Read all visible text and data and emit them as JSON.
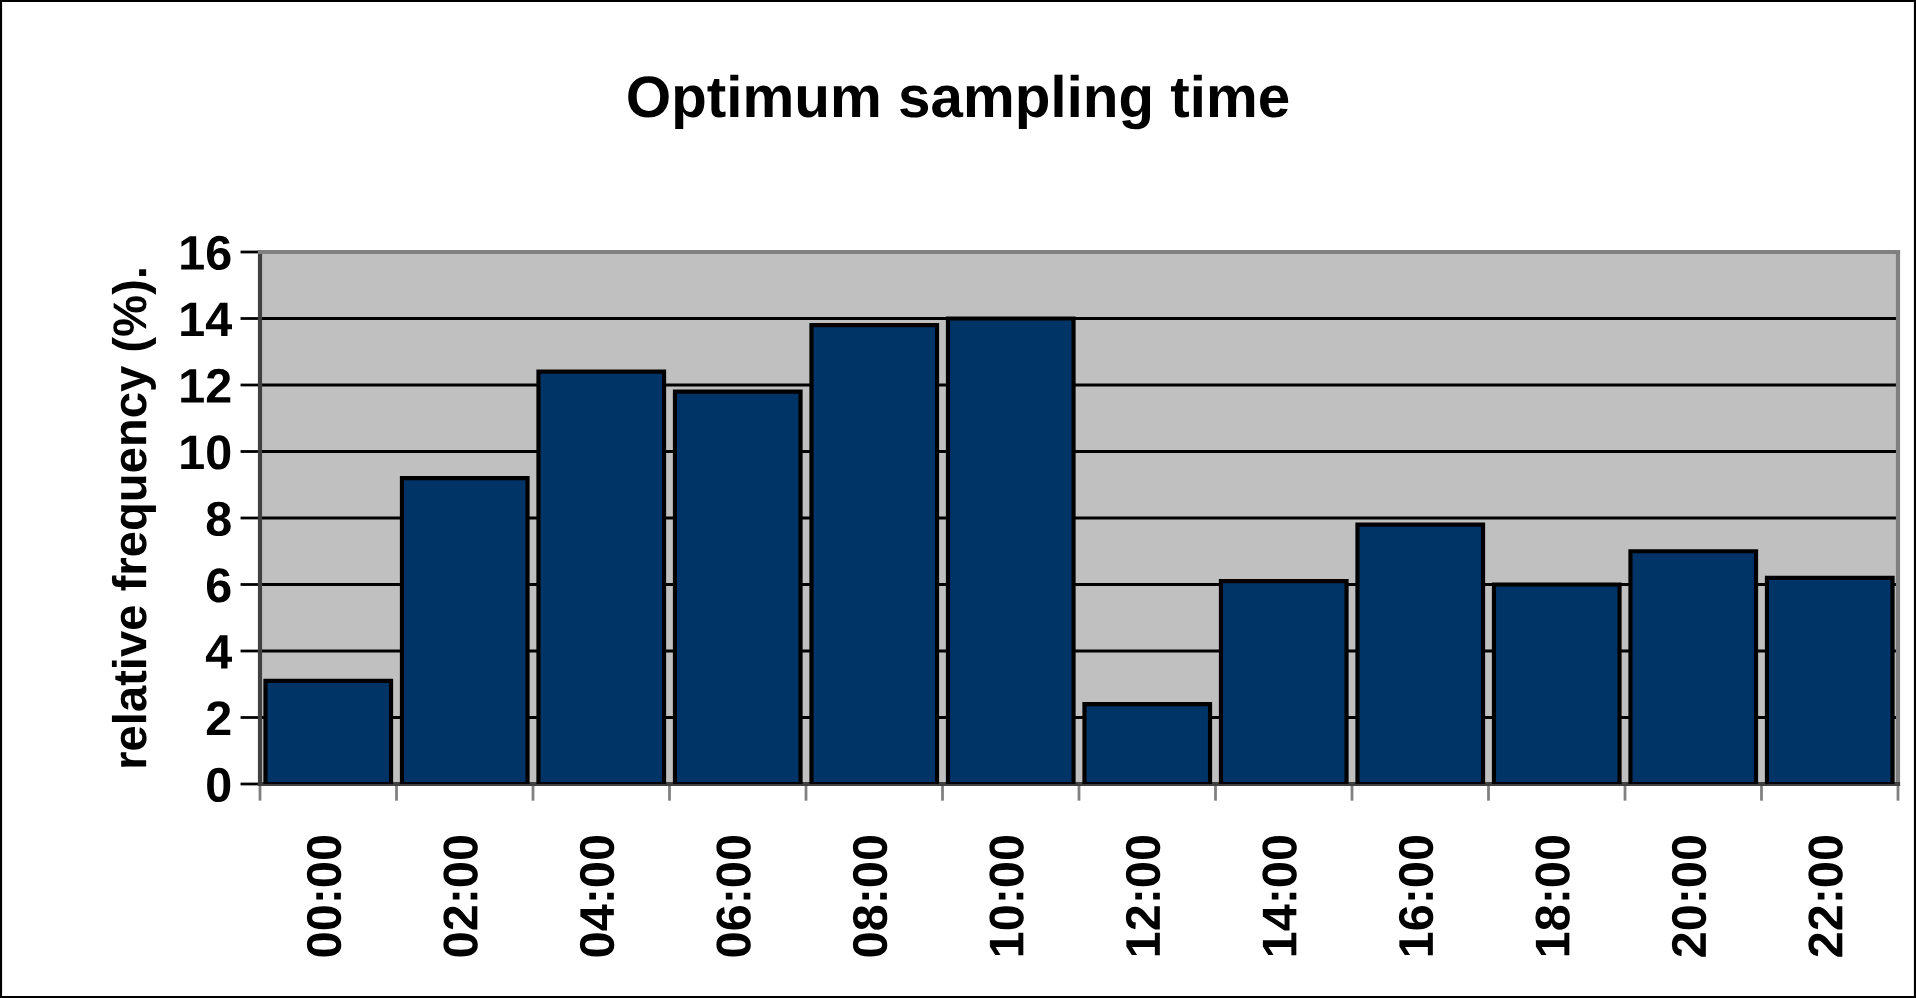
{
  "chart_data": {
    "type": "bar",
    "title": "Optimum sampling time",
    "ylabel": "relative frequency (%).",
    "categories": [
      "00:00",
      "02:00",
      "04:00",
      "06:00",
      "08:00",
      "10:00",
      "12:00",
      "14:00",
      "16:00",
      "18:00",
      "20:00",
      "22:00"
    ],
    "values": [
      3.1,
      9.2,
      12.4,
      11.8,
      13.8,
      14.0,
      2.4,
      6.1,
      7.8,
      6.0,
      7.0,
      6.2
    ],
    "color": "#003366",
    "ylim": [
      0,
      16
    ],
    "yticks": [
      0,
      2,
      4,
      6,
      8,
      10,
      12,
      14,
      16
    ],
    "grid": "y",
    "legend": false
  }
}
